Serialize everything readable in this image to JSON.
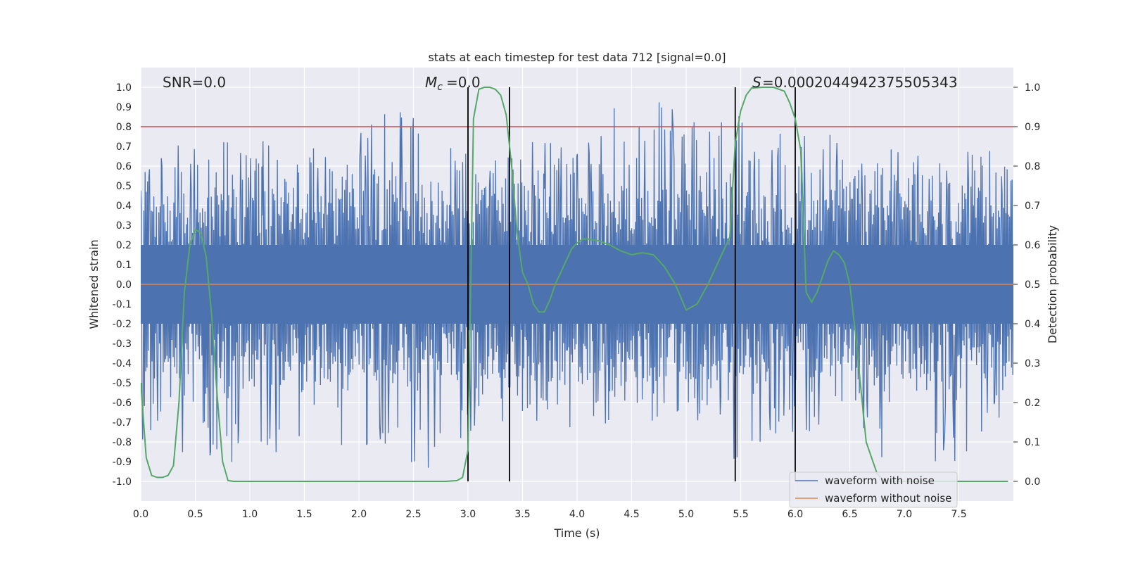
{
  "chart_data": {
    "type": "line",
    "title": "stats at each timestep for test data 712 [signal=0.0]",
    "xlabel": "Time (s)",
    "ylabel": "Whitened strain",
    "y2label": "Detection probability",
    "xlim": [
      0,
      8
    ],
    "ylim": [
      -1.1,
      1.1
    ],
    "y2lim": [
      -0.05,
      1.05
    ],
    "xticks": [
      "0.0",
      "0.5",
      "1.0",
      "1.5",
      "2.0",
      "2.5",
      "3.0",
      "3.5",
      "4.0",
      "4.5",
      "5.0",
      "5.5",
      "6.0",
      "6.5",
      "7.0",
      "7.5"
    ],
    "yticks": [
      "1.0",
      "0.9",
      "0.8",
      "0.7",
      "0.6",
      "0.5",
      "0.4",
      "0.3",
      "0.2",
      "0.1",
      "0.0",
      "-0.1",
      "-0.2",
      "-0.3",
      "-0.4",
      "-0.5",
      "-0.6",
      "-0.7",
      "-0.8",
      "-0.9",
      "-1.0"
    ],
    "y2ticks": [
      "1.0",
      "0.9",
      "0.8",
      "0.7",
      "0.6",
      "0.5",
      "0.4",
      "0.3",
      "0.2",
      "0.1",
      "0.0"
    ],
    "threshold": 0.8,
    "vlines": [
      3.0,
      3.38,
      5.45,
      6.0
    ],
    "vline_range": [
      -1.0,
      1.0
    ],
    "annotations": {
      "snr": "SNR=0.0",
      "mc": "=0.0",
      "s": "=0.0002044942375505343"
    },
    "noisy_envelope": {
      "x": [
        0.0,
        0.5,
        1.0,
        1.5,
        2.0,
        2.5,
        3.0,
        3.5,
        4.0,
        4.5,
        5.0,
        5.5,
        6.0,
        6.5,
        7.0,
        7.5,
        8.0
      ],
      "max": [
        0.6,
        0.78,
        0.75,
        0.72,
        0.8,
        0.96,
        0.72,
        0.75,
        0.7,
        0.99,
        0.9,
        0.93,
        0.75,
        0.8,
        0.7,
        0.73,
        0.65
      ],
      "min": [
        -0.8,
        -0.9,
        -0.93,
        -0.85,
        -0.8,
        -1.0,
        -0.75,
        -0.72,
        -0.77,
        -0.75,
        -0.7,
        -0.93,
        -0.75,
        -0.85,
        -0.92,
        -0.9,
        -0.62
      ]
    },
    "series": [
      {
        "name": "waveform with noise",
        "color": "#4c72b0"
      },
      {
        "name": "waveform without noise",
        "color": "#dd8452",
        "y": [
          0,
          0
        ]
      },
      {
        "name": "Detection probability",
        "color": "#55a868",
        "x": [
          0.0,
          0.05,
          0.1,
          0.15,
          0.2,
          0.25,
          0.3,
          0.35,
          0.4,
          0.45,
          0.5,
          0.55,
          0.6,
          0.65,
          0.7,
          0.75,
          0.8,
          0.85,
          0.9,
          1.0,
          1.5,
          2.0,
          2.5,
          2.8,
          2.9,
          2.95,
          3.0,
          3.05,
          3.1,
          3.15,
          3.2,
          3.25,
          3.3,
          3.35,
          3.4,
          3.45,
          3.5,
          3.55,
          3.6,
          3.65,
          3.7,
          3.75,
          3.8,
          3.85,
          3.9,
          3.95,
          4.0,
          4.05,
          4.1,
          4.2,
          4.3,
          4.4,
          4.5,
          4.6,
          4.7,
          4.8,
          4.9,
          5.0,
          5.1,
          5.2,
          5.3,
          5.4,
          5.45,
          5.5,
          5.55,
          5.6,
          5.7,
          5.8,
          5.9,
          5.95,
          6.0,
          6.05,
          6.1,
          6.15,
          6.2,
          6.25,
          6.3,
          6.35,
          6.4,
          6.45,
          6.5,
          6.55,
          6.6,
          6.65,
          6.7,
          6.75,
          6.8,
          6.85,
          6.9,
          7.0,
          7.5,
          7.95
        ],
        "y": [
          0.25,
          0.06,
          0.015,
          0.01,
          0.01,
          0.015,
          0.04,
          0.2,
          0.48,
          0.6,
          0.64,
          0.63,
          0.57,
          0.42,
          0.22,
          0.05,
          0.002,
          0.0,
          0.0,
          0.0,
          0.0,
          0.0,
          0.0,
          0.0,
          0.002,
          0.01,
          0.08,
          0.92,
          0.995,
          1.0,
          1.0,
          0.995,
          0.98,
          0.93,
          0.8,
          0.63,
          0.53,
          0.5,
          0.45,
          0.43,
          0.43,
          0.46,
          0.5,
          0.53,
          0.56,
          0.59,
          0.605,
          0.615,
          0.615,
          0.61,
          0.6,
          0.585,
          0.575,
          0.58,
          0.575,
          0.545,
          0.5,
          0.435,
          0.45,
          0.5,
          0.56,
          0.62,
          0.86,
          0.94,
          0.98,
          0.998,
          1.0,
          1.0,
          0.99,
          0.96,
          0.92,
          0.84,
          0.48,
          0.455,
          0.48,
          0.52,
          0.56,
          0.585,
          0.575,
          0.555,
          0.5,
          0.38,
          0.24,
          0.1,
          0.06,
          0.02,
          0.005,
          0.001,
          0.0,
          0.0,
          0.0,
          0.0
        ]
      }
    ]
  }
}
